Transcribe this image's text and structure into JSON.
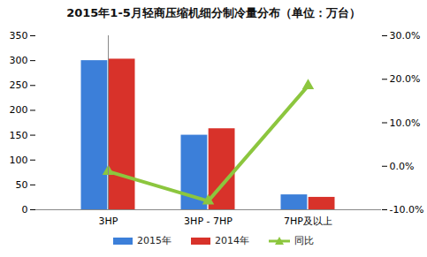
{
  "chart_data": {
    "type": "bar",
    "title": "2015年1-5月轻商压缩机细分制冷量分布（单位：万台）",
    "categories": [
      "3HP",
      "3HP - 7HP",
      "7HP及以上"
    ],
    "series": [
      {
        "name": "2015年",
        "color": "#3c7fd9",
        "values": [
          300,
          150,
          30
        ]
      },
      {
        "name": "2014年",
        "color": "#d8322a",
        "values": [
          303,
          163,
          25
        ]
      },
      {
        "name": "同比",
        "type": "line",
        "axis": "y2",
        "color": "#8cc63e",
        "marker": "triangle",
        "values": [
          -1.2,
          -8.0,
          18.5
        ]
      }
    ],
    "ylim": [
      0,
      350
    ],
    "yticks": [
      0,
      50,
      100,
      150,
      200,
      250,
      300,
      350
    ],
    "y2lim": [
      -10,
      30
    ],
    "y2ticks": [
      {
        "value": -10,
        "label": "-10.0%"
      },
      {
        "value": 0,
        "label": "0.0%"
      },
      {
        "value": 10,
        "label": "10.0%"
      },
      {
        "value": 20,
        "label": "20.0%"
      },
      {
        "value": 30,
        "label": "30.0%"
      }
    ],
    "grid": false,
    "legend": "bottom"
  }
}
